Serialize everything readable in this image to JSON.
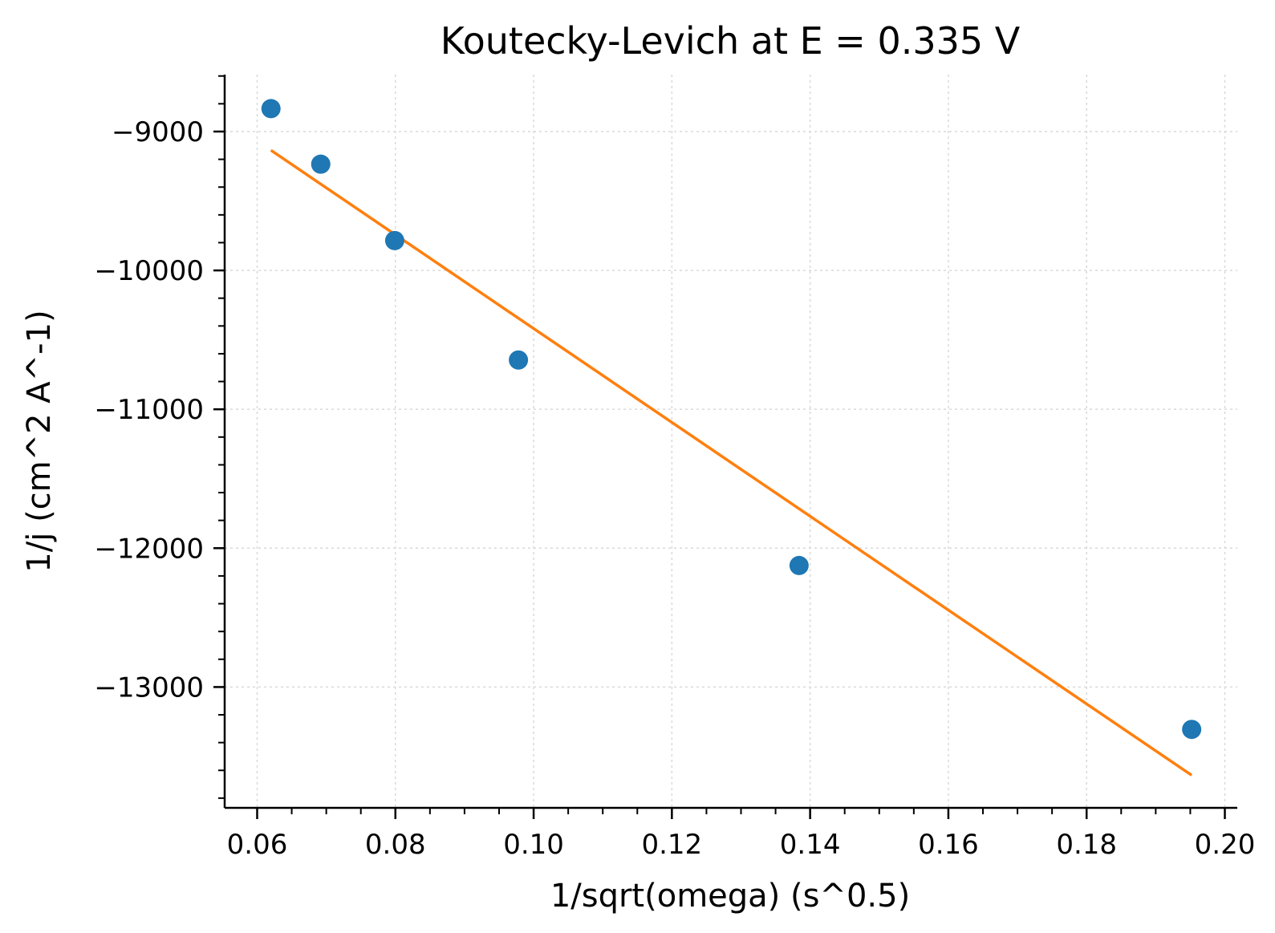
{
  "chart_data": {
    "type": "scatter",
    "title": "Koutecky-Levich at E = 0.335 V",
    "xlabel": "1/sqrt(omega) (s^0.5)",
    "ylabel": "1/j (cm^2 A^-1)",
    "xlim": [
      0.0553,
      0.2018
    ],
    "ylim": [
      -13870,
      -8590
    ],
    "grid": true,
    "xticks": [
      0.06,
      0.08,
      0.1,
      0.12,
      0.14,
      0.16,
      0.18,
      0.2
    ],
    "xtick_labels": [
      "0.06",
      "0.08",
      "0.10",
      "0.12",
      "0.14",
      "0.16",
      "0.18",
      "0.20"
    ],
    "xminor_step": 0.005,
    "yticks": [
      -9000,
      -10000,
      -11000,
      -12000,
      -13000
    ],
    "ytick_labels": [
      "−9000",
      "−10000",
      "−11000",
      "−12000",
      "−13000"
    ],
    "yminor_step": 200,
    "series": [
      {
        "kind": "scatter",
        "color": "#1f77b4",
        "x": [
          0.062,
          0.0692,
          0.0799,
          0.0978,
          0.1384,
          0.1952
        ],
        "y": [
          -8835,
          -9235,
          -9785,
          -10645,
          -12125,
          -13305
        ]
      },
      {
        "kind": "line",
        "color": "#ff7f0e",
        "x": [
          0.062,
          0.1952
        ],
        "y": [
          -9135,
          -13635
        ]
      }
    ]
  }
}
